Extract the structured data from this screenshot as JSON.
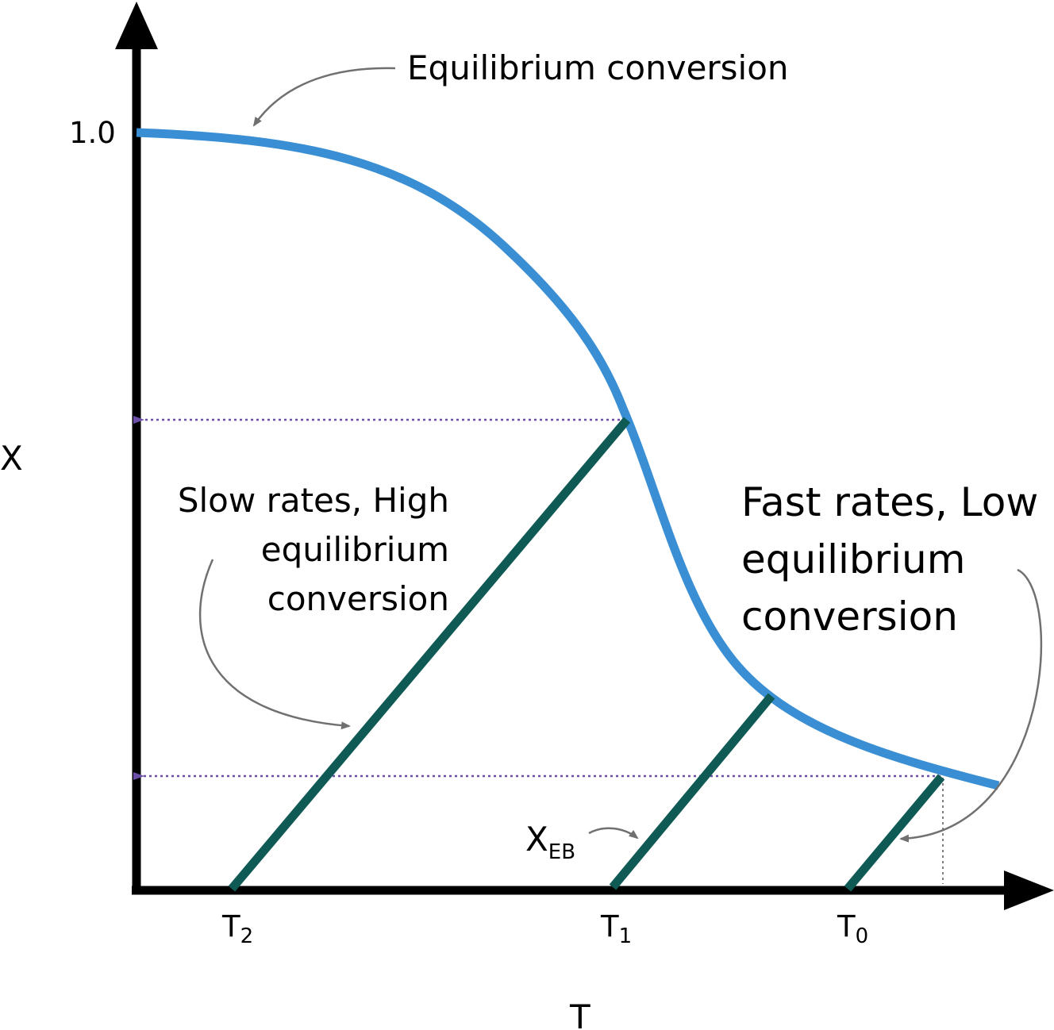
{
  "axes": {
    "y_label": "X",
    "x_label": "T",
    "y_tick": "1.0"
  },
  "annotations": {
    "equilibrium": "Equilibrium conversion",
    "slow": [
      "Slow rates, High",
      "equilibrium",
      "conversion"
    ],
    "fast": [
      "Fast rates, Low",
      "equilibrium",
      "conversion"
    ],
    "xeb_main": "X",
    "xeb_sub": "EB"
  },
  "temperatures": [
    {
      "main": "T",
      "sub": "2"
    },
    {
      "main": "T",
      "sub": "1"
    },
    {
      "main": "T",
      "sub": "0"
    }
  ],
  "colors": {
    "equilibrium_curve": "#3a8fd4",
    "operating_lines": "#0f5a55",
    "axes": "#000000",
    "guide_arrows": "#6b4fa8",
    "callouts": "#707070"
  }
}
